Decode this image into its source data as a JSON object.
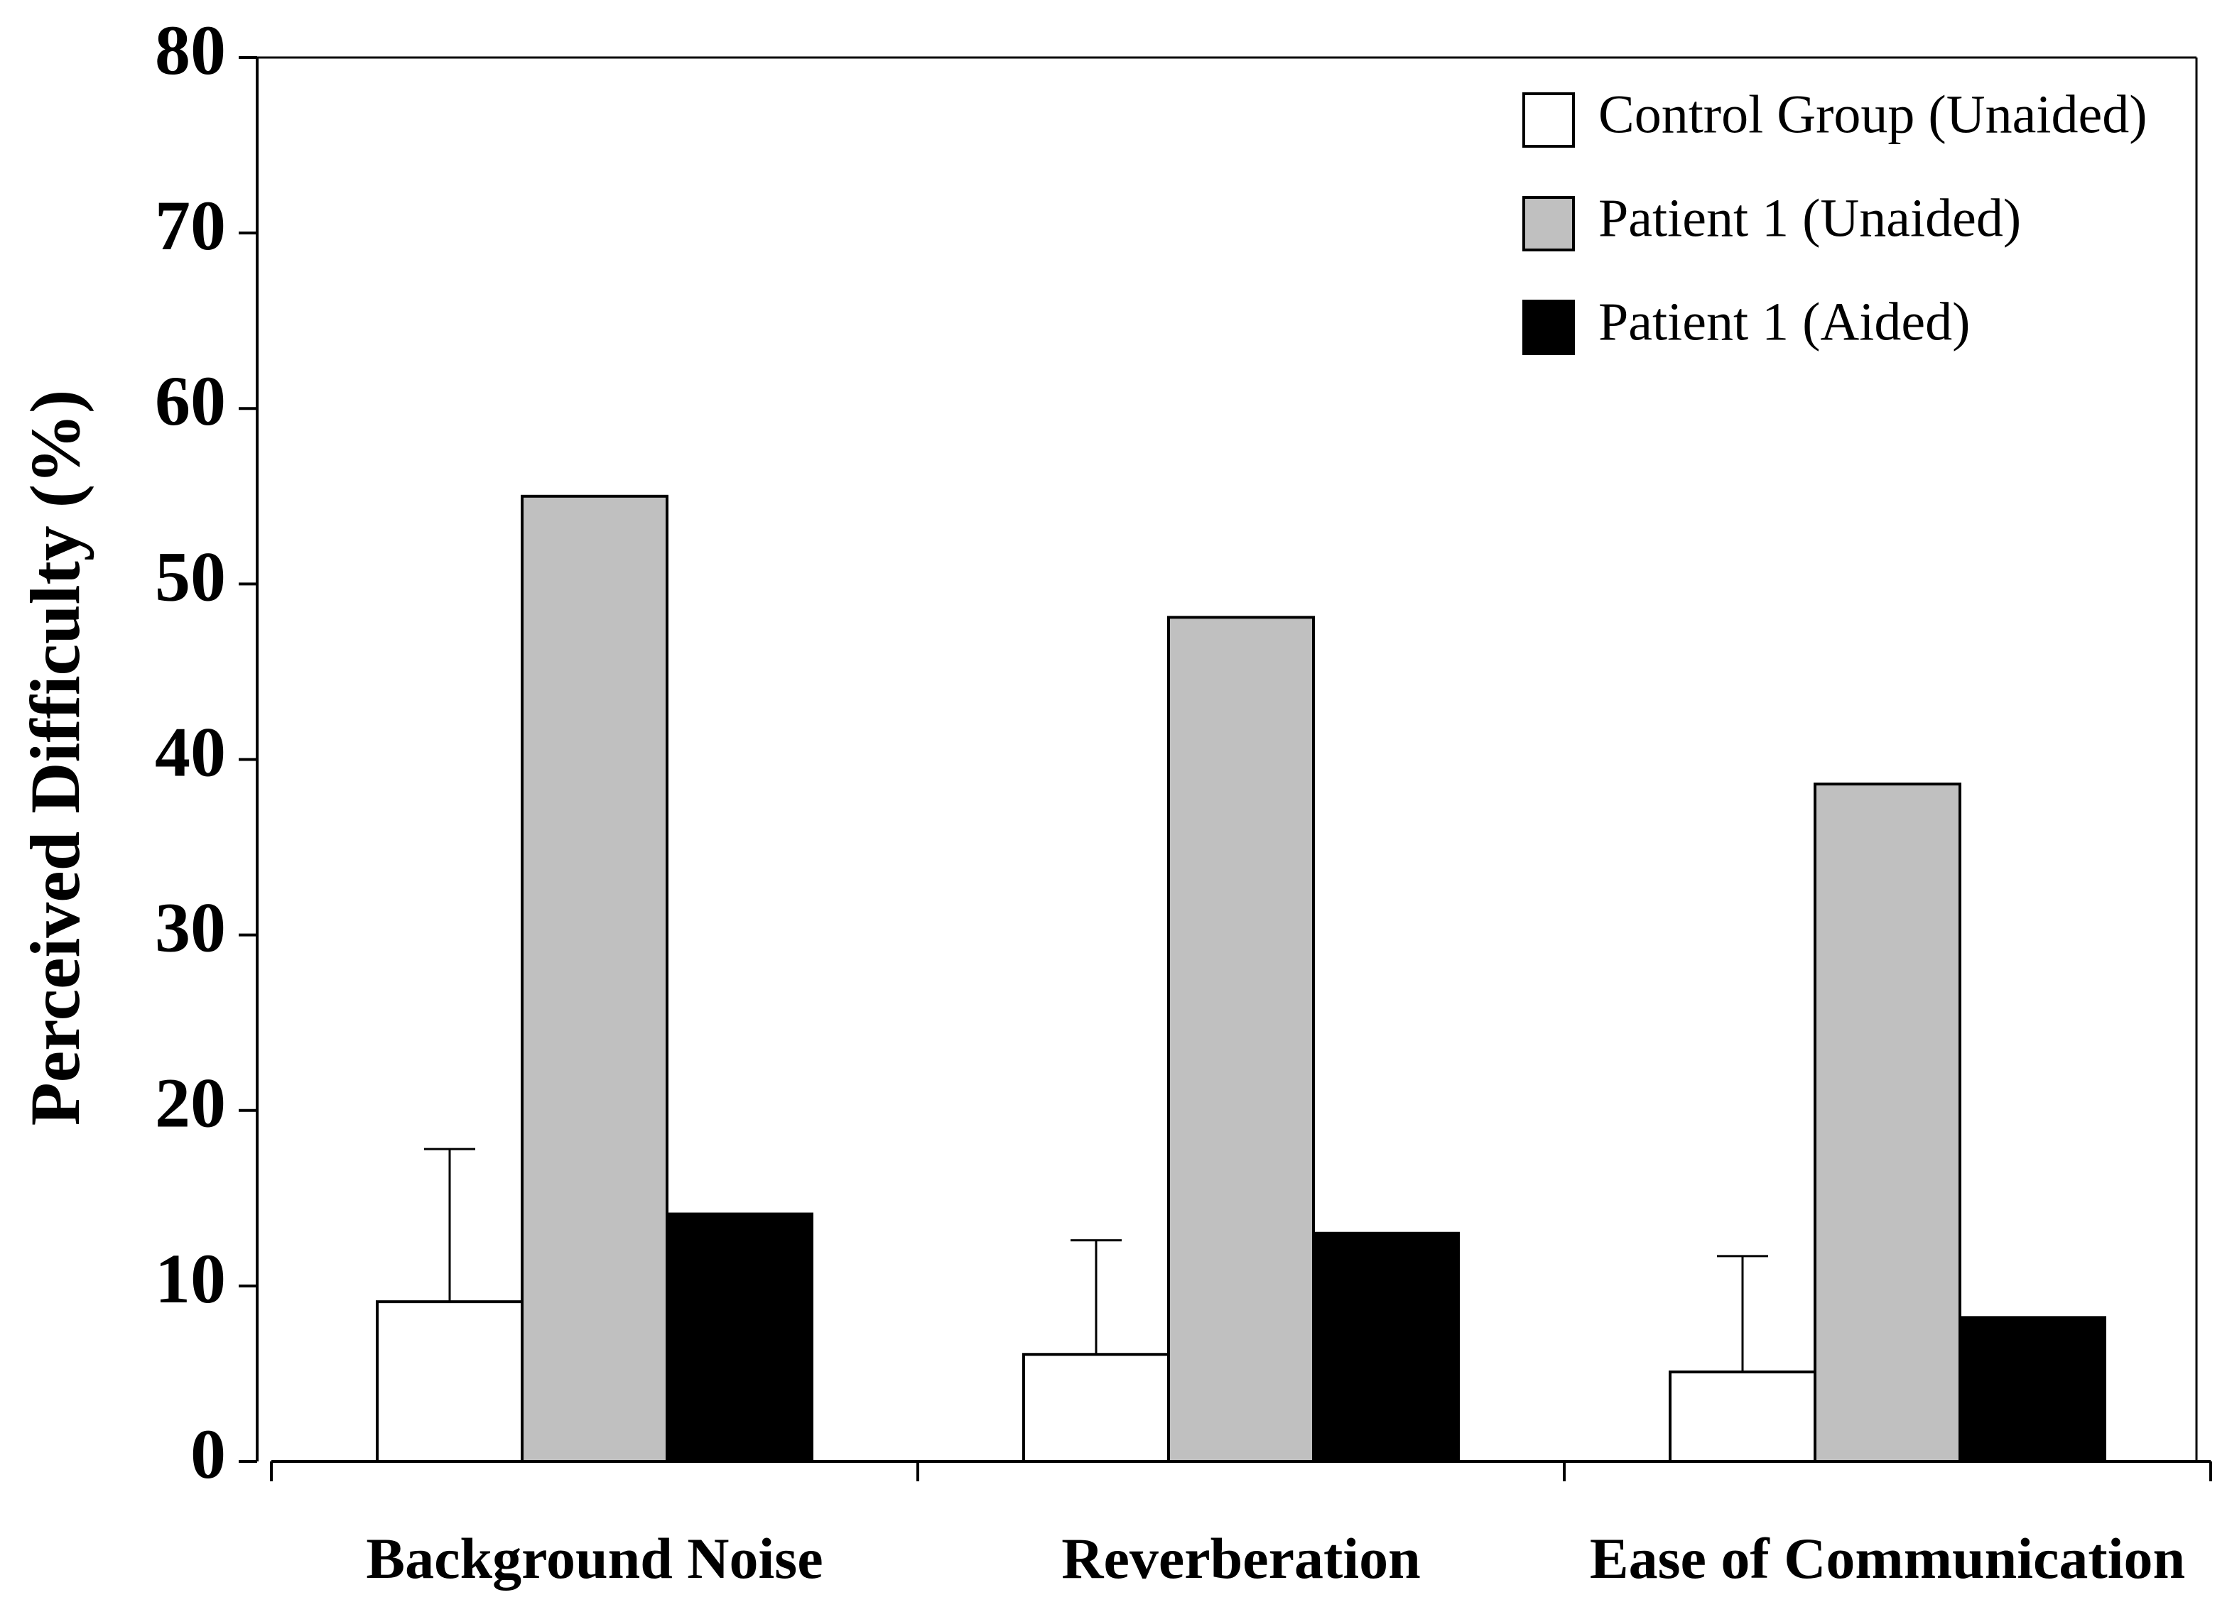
{
  "chart_data": {
    "type": "bar",
    "y_label": "Perceived Difficulty (%)",
    "categories": [
      "Background Noise",
      "Reverberation",
      "Ease of Communication"
    ],
    "series": [
      {
        "name": "Control Group (Unaided)",
        "color": "#ffffff",
        "values": [
          9.1,
          6.1,
          5.1
        ],
        "errors": [
          8.7,
          6.5,
          6.6
        ]
      },
      {
        "name": "Patient 1 (Unaided)",
        "color": "#c0c0c0",
        "values": [
          55,
          48.1,
          38.6
        ]
      },
      {
        "name": "Patient 1 (Aided)",
        "color": "#000000",
        "values": [
          14.1,
          13,
          8.2
        ]
      }
    ],
    "ylim": [
      0,
      80
    ],
    "yticks": [
      0,
      10,
      20,
      30,
      40,
      50,
      60,
      70,
      80
    ],
    "legend": "upper right"
  }
}
